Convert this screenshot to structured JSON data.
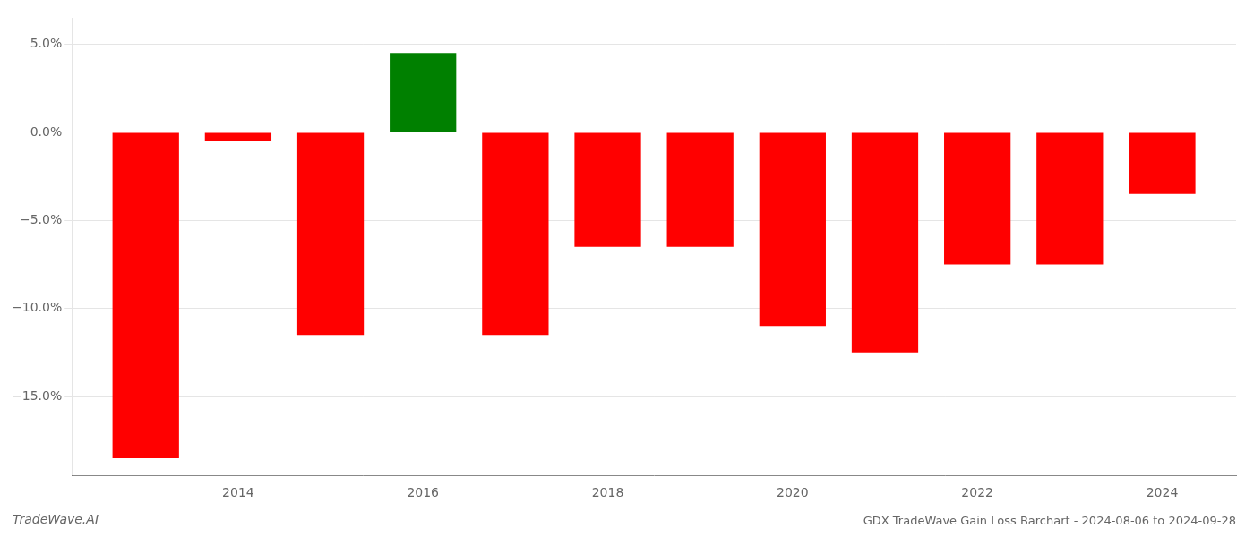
{
  "chart_data": {
    "type": "bar",
    "title": "GDX TradeWave Gain Loss Barchart - 2024-08-06 to 2024-09-28",
    "annotations": [
      "TradeWave.AI"
    ],
    "x": [
      2013,
      2014,
      2015,
      2016,
      2017,
      2018,
      2019,
      2020,
      2021,
      2022,
      2023,
      2024
    ],
    "values": [
      -18.5,
      -0.5,
      -11.5,
      4.5,
      -11.5,
      -6.5,
      -6.5,
      -11.0,
      -12.5,
      -7.5,
      -7.5,
      -3.5
    ],
    "colors": [
      "#FF0000",
      "#FF0000",
      "#FF0000",
      "#008000",
      "#FF0000",
      "#FF0000",
      "#FF0000",
      "#FF0000",
      "#FF0000",
      "#FF0000",
      "#FF0000",
      "#FF0000"
    ],
    "xlim": [
      2012.2,
      2024.8
    ],
    "xticks": [
      2014,
      2016,
      2018,
      2020,
      2022,
      2024
    ],
    "ylim": [
      -19.5,
      6.5
    ],
    "yticks": [
      {
        "value": 5.0,
        "label": "5.0%"
      },
      {
        "value": 0.0,
        "label": "0.0%"
      },
      {
        "value": -5.0,
        "label": "−5.0%"
      },
      {
        "value": -10.0,
        "label": "−10.0%"
      },
      {
        "value": -15.0,
        "label": "−15.0%"
      }
    ],
    "grid": true
  }
}
